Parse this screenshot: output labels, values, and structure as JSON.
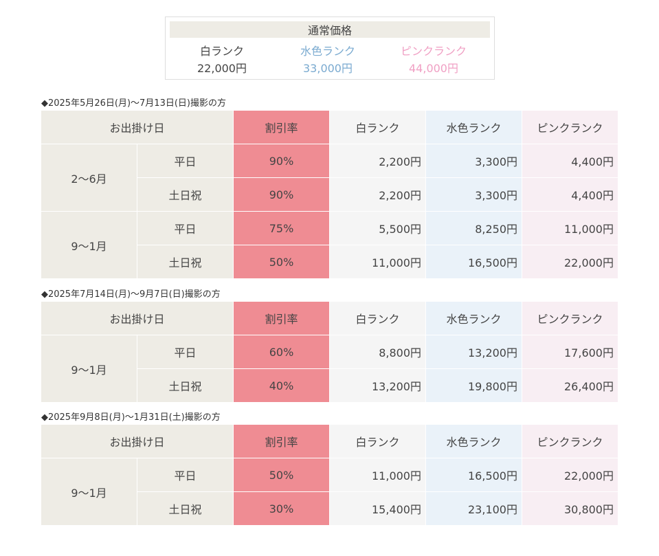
{
  "normal_price": {
    "title": "通常価格",
    "ranks": [
      {
        "name": "白ランク",
        "price": "22,000円"
      },
      {
        "name": "水色ランク",
        "price": "33,000円"
      },
      {
        "name": "ピンクランク",
        "price": "44,000円"
      }
    ]
  },
  "sections": [
    {
      "caption": "◆2025年5月26日(月)〜7月13日(日)撮影の方",
      "header": [
        "お出掛け日",
        "割引率",
        "白ランク",
        "水色ランク",
        "ピンクランク"
      ],
      "groups": [
        {
          "period": "2〜6月",
          "rows": [
            [
              "平日",
              "90%",
              "2,200円",
              "3,300円",
              "4,400円"
            ],
            [
              "土日祝",
              "90%",
              "2,200円",
              "3,300円",
              "4,400円"
            ]
          ]
        },
        {
          "period": "9〜1月",
          "rows": [
            [
              "平日",
              "75%",
              "5,500円",
              "8,250円",
              "11,000円"
            ],
            [
              "土日祝",
              "50%",
              "11,000円",
              "16,500円",
              "22,000円"
            ]
          ]
        }
      ]
    },
    {
      "caption": "◆2025年7月14日(月)〜9月7日(日)撮影の方",
      "header": [
        "お出掛け日",
        "割引率",
        "白ランク",
        "水色ランク",
        "ピンクランク"
      ],
      "groups": [
        {
          "period": "9〜1月",
          "rows": [
            [
              "平日",
              "60%",
              "8,800円",
              "13,200円",
              "17,600円"
            ],
            [
              "土日祝",
              "40%",
              "13,200円",
              "19,800円",
              "26,400円"
            ]
          ]
        }
      ]
    },
    {
      "caption": "◆2025年9月8日(月)〜1月31日(土)撮影の方",
      "header": [
        "お出掛け日",
        "割引率",
        "白ランク",
        "水色ランク",
        "ピンクランク"
      ],
      "groups": [
        {
          "period": "9〜1月",
          "rows": [
            [
              "平日",
              "50%",
              "11,000円",
              "16,500円",
              "22,000円"
            ],
            [
              "土日祝",
              "30%",
              "15,400円",
              "23,100円",
              "30,800円"
            ]
          ]
        }
      ]
    }
  ]
}
